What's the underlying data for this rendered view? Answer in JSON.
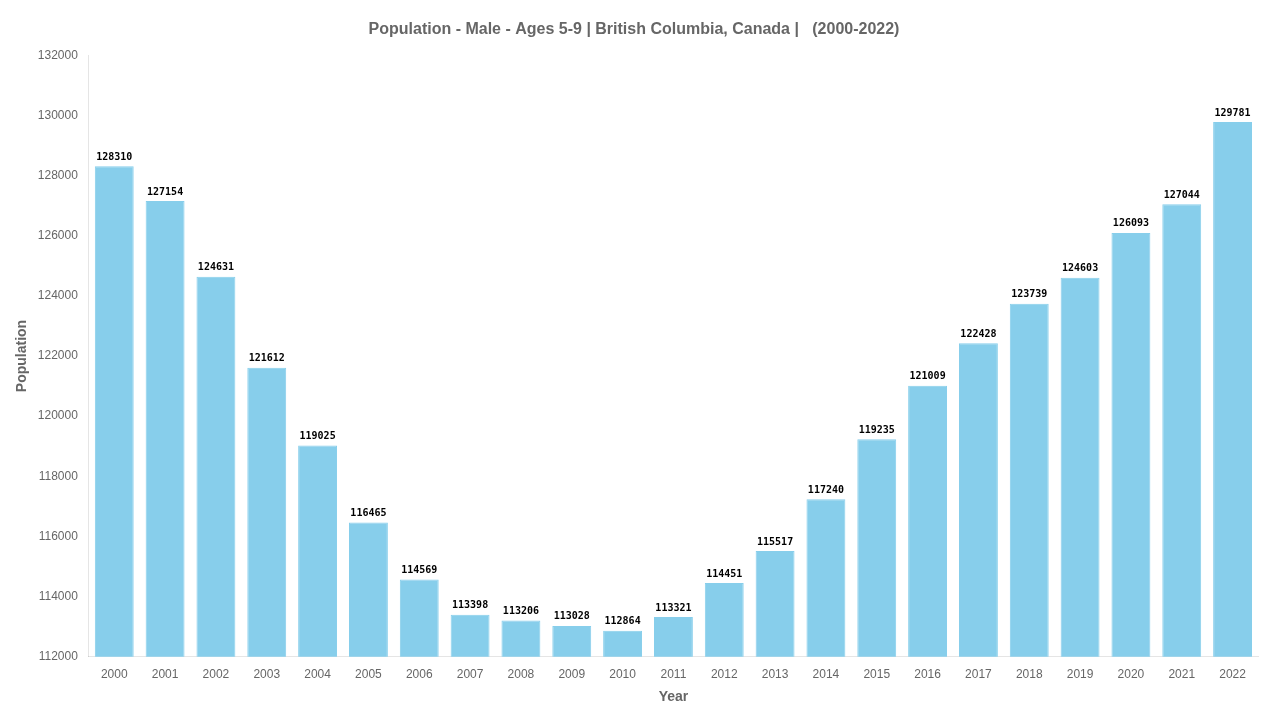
{
  "chart_data": {
    "type": "bar",
    "title": "Population - Male - Ages 5-9 | British Columbia, Canada |   (2000-2022)",
    "x_label": "Year",
    "y_label": "Population",
    "categories": [
      "2000",
      "2001",
      "2002",
      "2003",
      "2004",
      "2005",
      "2006",
      "2007",
      "2008",
      "2009",
      "2010",
      "2011",
      "2012",
      "2013",
      "2014",
      "2015",
      "2016",
      "2017",
      "2018",
      "2019",
      "2020",
      "2021",
      "2022"
    ],
    "values": [
      128310,
      127154,
      124631,
      121612,
      119025,
      116465,
      114569,
      113398,
      113206,
      113028,
      112864,
      113321,
      114451,
      115517,
      117240,
      119235,
      121009,
      122428,
      123739,
      124603,
      126093,
      127044,
      129781
    ],
    "color": "#87CEEB",
    "ylim": [
      112000,
      132000
    ],
    "yticks": [
      112000,
      114000,
      116000,
      118000,
      120000,
      122000,
      124000,
      126000,
      128000,
      130000,
      132000
    ],
    "grid": false,
    "data_labels": true
  }
}
